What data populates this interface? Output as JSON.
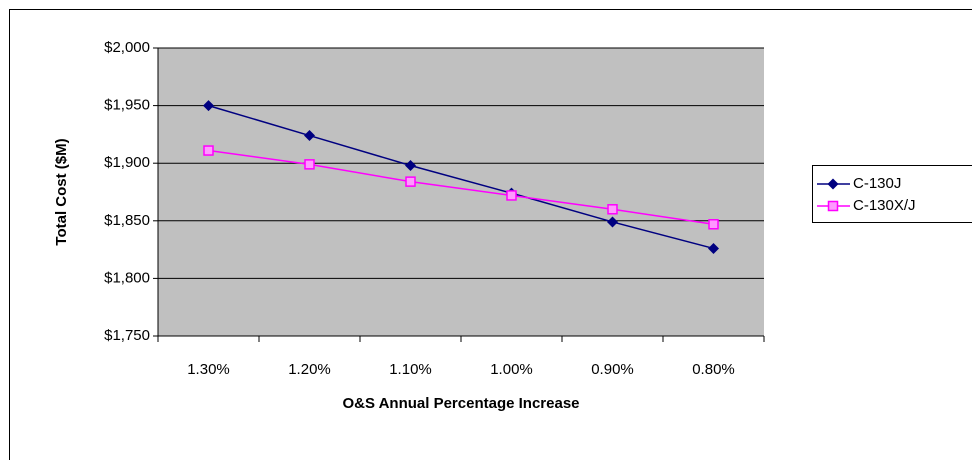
{
  "chart_data": {
    "type": "line",
    "x_label": "O&S Annual Percentage Increase",
    "y_label": "Total Cost ($M)",
    "categories": [
      "1.30%",
      "1.20%",
      "1.10%",
      "1.00%",
      "0.90%",
      "0.80%"
    ],
    "series": [
      {
        "name": "C-130J",
        "color": "#000080",
        "marker": "diamond",
        "values": [
          1950,
          1924,
          1898,
          1874,
          1849,
          1826
        ]
      },
      {
        "name": "C-130X/J",
        "color": "#ff00ff",
        "marker": "square",
        "values": [
          1911,
          1899,
          1884,
          1872,
          1860,
          1847
        ]
      }
    ],
    "ylim": [
      1750,
      2000
    ],
    "yticks": [
      {
        "value": 1750,
        "label": "$1,750"
      },
      {
        "value": 1800,
        "label": "$1,800"
      },
      {
        "value": 1850,
        "label": "$1,850"
      },
      {
        "value": 1900,
        "label": "$1,900"
      },
      {
        "value": 1950,
        "label": "$1,950"
      },
      {
        "value": 2000,
        "label": "$2,000"
      }
    ],
    "grid": true,
    "legend": "right"
  }
}
